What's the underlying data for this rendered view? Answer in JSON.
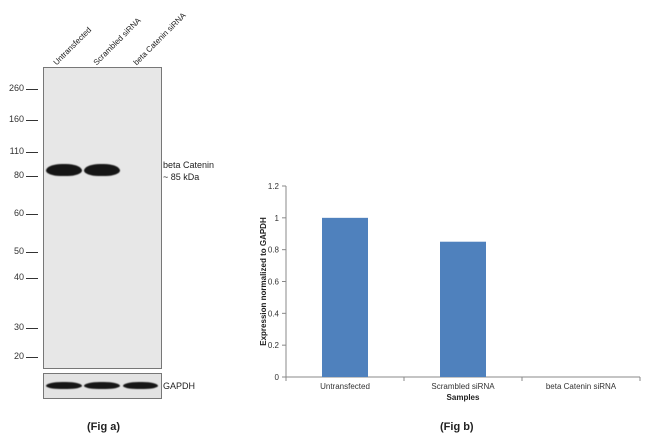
{
  "fig_a": {
    "lane_labels": [
      "Untransfected",
      "Scrambled siRNA",
      "beta Catenin siRNA"
    ],
    "mw_markers": [
      "260",
      "160",
      "110",
      "80",
      "60",
      "50",
      "40",
      "30",
      "20"
    ],
    "band_label_line1": "beta Catenin",
    "band_label_line2": "~ 85 kDa",
    "loading_control_label": "GAPDH",
    "caption": "(Fig a)"
  },
  "fig_b": {
    "caption": "(Fig b)"
  },
  "chart_data": {
    "type": "bar",
    "categories": [
      "Untransfected",
      "Scrambled siRNA",
      "beta Catenin siRNA"
    ],
    "values": [
      1.0,
      0.85,
      0.0
    ],
    "title": "",
    "xlabel": "Samples",
    "ylabel": "Expression  normalized to GAPDH",
    "ylim": [
      0,
      1.2
    ],
    "yticks": [
      "0",
      "0.2",
      "0.4",
      "0.6",
      "0.8",
      "1",
      "1.2"
    ],
    "bar_color": "#4f81bd",
    "grid": false,
    "legend": "none"
  }
}
